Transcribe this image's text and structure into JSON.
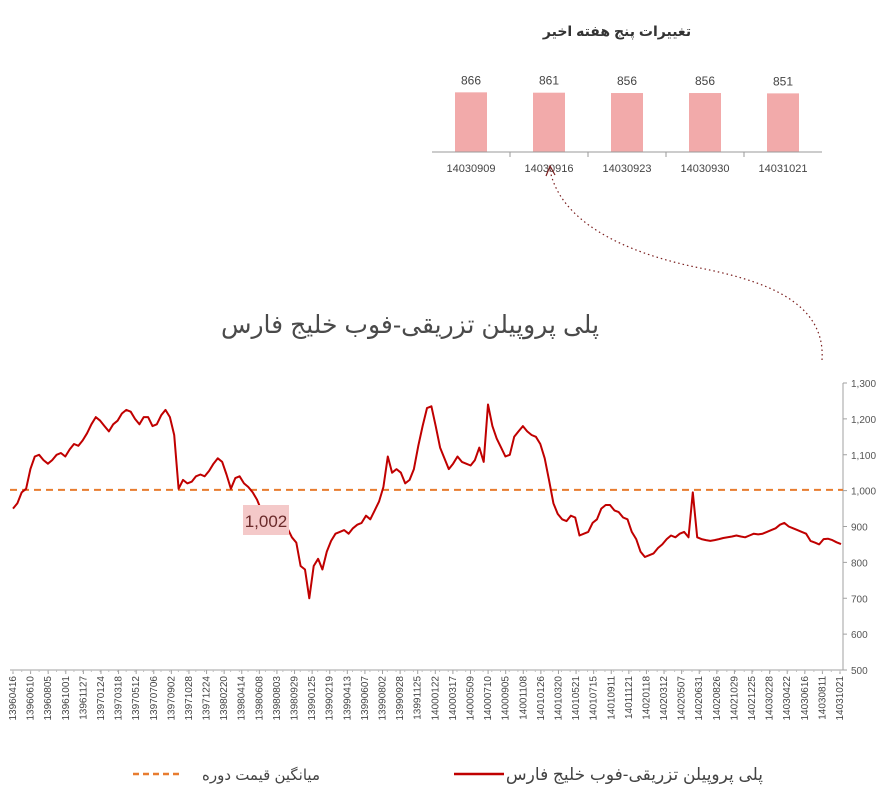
{
  "weekly": {
    "title": "تغییرات پنج هفته اخیر",
    "chart_data": {
      "type": "bar",
      "categories": [
        "14030909",
        "14030916",
        "14030923",
        "14030930",
        "14031021"
      ],
      "values": [
        866,
        861,
        856,
        856,
        851
      ],
      "ylim": [
        0,
        900
      ],
      "color": "#f2aaaa"
    }
  },
  "main": {
    "title": "پلی پروپیلن تزریقی-فوب خلیج فارس",
    "average_label": "1,002",
    "chart_data": {
      "type": "line",
      "ylim": [
        500,
        1300
      ],
      "yticks": [
        "500",
        "600",
        "700",
        "800",
        "900",
        "1,000",
        "1,100",
        "1,200",
        "1,300"
      ],
      "x_tick_labels": [
        "13960416",
        "13960610",
        "13960805",
        "13961001",
        "13961127",
        "13970124",
        "13970318",
        "13970512",
        "13970706",
        "13970902",
        "13971028",
        "13971224",
        "13980220",
        "13980414",
        "13980608",
        "13980803",
        "13980929",
        "13990125",
        "13990219",
        "13990413",
        "13990607",
        "13990802",
        "13990928",
        "13991125",
        "14000122",
        "14000317",
        "14000509",
        "14000710",
        "14000905",
        "14001108",
        "14010126",
        "14010320",
        "14010521",
        "14010715",
        "14010911",
        "14011121",
        "14020118",
        "14020312",
        "14020507",
        "14020631",
        "14020826",
        "14021029",
        "14021225",
        "14030228",
        "14030422",
        "14030616",
        "14030811",
        "14031021"
      ],
      "average": 1002,
      "series": [
        {
          "name": "پلی پروپیلن تزریقی-فوب خلیج فارس",
          "color": "#c00000",
          "values": [
            950,
            965,
            995,
            1005,
            1060,
            1095,
            1100,
            1085,
            1075,
            1085,
            1100,
            1105,
            1095,
            1115,
            1130,
            1125,
            1140,
            1160,
            1185,
            1205,
            1195,
            1180,
            1165,
            1185,
            1195,
            1215,
            1225,
            1220,
            1200,
            1185,
            1205,
            1205,
            1180,
            1185,
            1210,
            1225,
            1205,
            1155,
            1005,
            1030,
            1020,
            1025,
            1040,
            1045,
            1040,
            1055,
            1075,
            1090,
            1080,
            1045,
            1005,
            1035,
            1040,
            1020,
            1010,
            995,
            975,
            945,
            930,
            915,
            905,
            910,
            905,
            895,
            870,
            855,
            790,
            780,
            700,
            790,
            810,
            780,
            830,
            860,
            880,
            885,
            890,
            880,
            895,
            905,
            910,
            930,
            920,
            945,
            970,
            1010,
            1095,
            1050,
            1060,
            1050,
            1020,
            1030,
            1060,
            1125,
            1180,
            1230,
            1235,
            1180,
            1120,
            1090,
            1060,
            1075,
            1095,
            1080,
            1075,
            1070,
            1085,
            1120,
            1080,
            1240,
            1180,
            1145,
            1120,
            1095,
            1100,
            1150,
            1165,
            1180,
            1165,
            1155,
            1150,
            1130,
            1090,
            1030,
            965,
            935,
            920,
            915,
            930,
            925,
            875,
            880,
            885,
            910,
            920,
            950,
            960,
            960,
            945,
            940,
            925,
            920,
            885,
            865,
            830,
            815,
            820,
            825,
            840,
            850,
            865,
            875,
            870,
            880,
            885,
            870,
            995,
            870,
            865,
            862,
            860,
            862,
            865,
            868,
            870,
            872,
            875,
            872,
            870,
            875,
            880,
            878,
            880,
            885,
            890,
            895,
            905,
            910,
            900,
            895,
            890,
            885,
            880,
            860,
            855,
            850,
            865,
            866,
            862,
            856,
            851
          ]
        }
      ]
    }
  },
  "legend": {
    "series_label": "پلی پروپیلن تزریقی-فوب خلیج فارس",
    "average_label": "میانگین قیمت دوره"
  },
  "colors": {
    "line": "#c00000",
    "average": "#e87c2f",
    "bar": "#f2aaaa",
    "label_box": "#f4c9c9"
  }
}
